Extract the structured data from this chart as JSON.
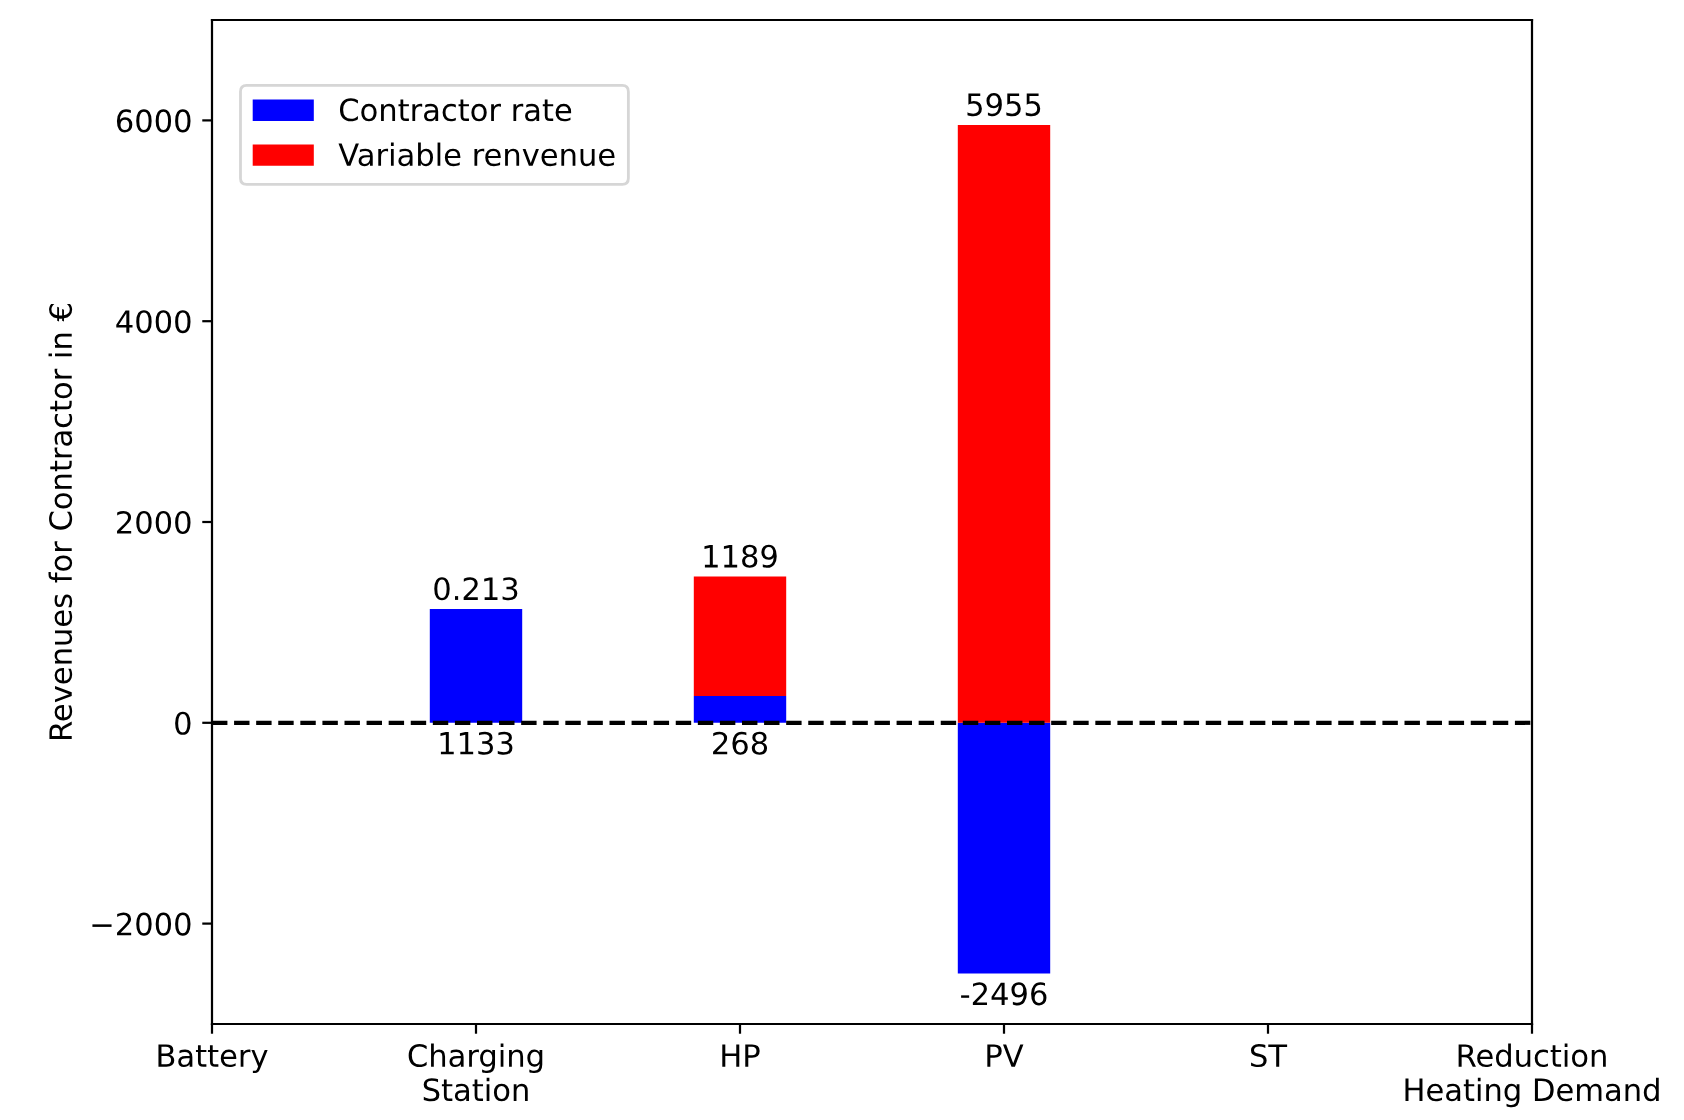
{
  "chart_data": {
    "type": "bar",
    "stacked": true,
    "ylabel": "Revenues for Contractor in €",
    "categories": [
      "Battery",
      "Charging\nStation",
      "HP",
      "PV",
      "ST",
      "Reduction\nHeating Demand"
    ],
    "series": [
      {
        "name": "Contractor rate",
        "color": "#0000ff",
        "values": [
          0,
          1133,
          268,
          -2496,
          0,
          0
        ],
        "value_labels": [
          null,
          "1133",
          "268",
          "-2496",
          null,
          null
        ]
      },
      {
        "name": "Variable renvenue",
        "color": "#ff0000",
        "values": [
          0,
          0.213,
          1189,
          5955,
          0,
          0
        ],
        "value_labels": [
          null,
          "0.213",
          "1189",
          "5955",
          null,
          null
        ]
      }
    ],
    "ylim": [
      -3000,
      7000
    ],
    "yticks": [
      {
        "value": -2000,
        "label": "−2000"
      },
      0,
      2000,
      4000,
      6000
    ],
    "ref_lines": [
      {
        "axis": "y",
        "value": 0,
        "color": "#000000",
        "line_style": "dashed"
      }
    ],
    "legend": "top left",
    "grid": false
  }
}
